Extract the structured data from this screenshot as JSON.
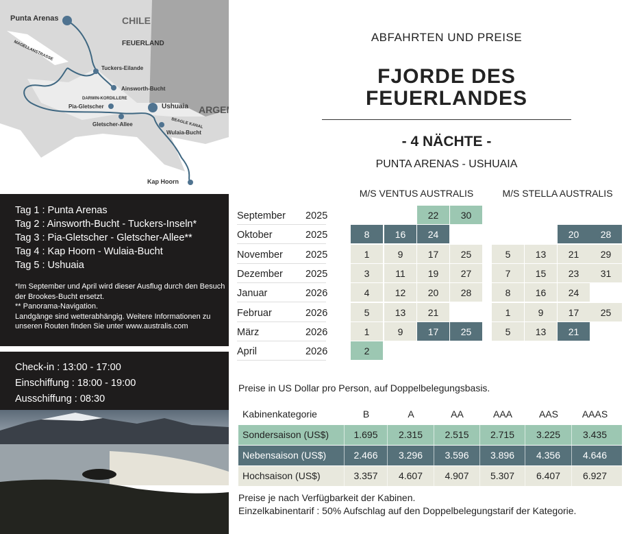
{
  "map": {
    "labels": {
      "country1": "CHILE",
      "region": "FEUERLAND",
      "country2": "ARGENTINIEN",
      "strait": "MAGELLANSTRASSE",
      "range": "DARWIN-KORDILLERE",
      "channel": "BEAGLE KANAL"
    },
    "stops": [
      {
        "n": "1",
        "name": "Punta Arenas"
      },
      {
        "n": "2",
        "name": "Tuckers-Eilande"
      },
      {
        "n": "2",
        "name": "Ainsworth-Bucht"
      },
      {
        "n": "3",
        "name": "Pia-Gletscher"
      },
      {
        "n": "3",
        "name": "Gletscher-Allee"
      },
      {
        "n": "5",
        "name": "Ushuaia"
      },
      {
        "n": "4",
        "name": "Wulaia-Bucht"
      },
      {
        "n": "4",
        "name": "Kap Hoorn"
      }
    ],
    "route_color": "#3f6781"
  },
  "itinerary": {
    "days": [
      "Tag 1 : Punta Arenas",
      "Tag 2 : Ainsworth-Bucht - Tuckers-Inseln*",
      "Tag 3 : Pia-Gletscher - Gletscher-Allee**",
      "Tag 4 : Kap Hoorn - Wulaia-Bucht",
      "Tag 5 : Ushuaia"
    ],
    "notes": [
      "*Im September und April wird dieser Ausflug durch den Besuch der Brookes-Bucht ersetzt.",
      "** Panorama-Navigation.",
      "Landgänge sind wetterabhängig. Weitere Informationen zu unseren Routen finden Sie unter www.australis.com"
    ]
  },
  "times": [
    "Check-in : 13:00 - 17:00",
    "Einschiffung : 18:00 - 19:00",
    "Ausschiffung : 08:30"
  ],
  "header": {
    "subtitle": "ABFAHRTEN UND PREISE",
    "title_line1": "FJORDE DES",
    "title_line2": "FEUERLANDES",
    "nights": "- 4 NÄCHTE -",
    "route": "PUNTA ARENAS - USHUAIA"
  },
  "ships": [
    "M/S VENTUS AUSTRALIS",
    "M/S STELLA AUSTRALIS"
  ],
  "season_colors": {
    "sonder": "#9cc7b2",
    "neben": "#56717a",
    "hoch": "#e8e8dd"
  },
  "calendar": [
    {
      "month": "September",
      "year": "2025",
      "ventus": [
        null,
        null,
        [
          "22",
          "s"
        ],
        [
          "30",
          "s"
        ]
      ],
      "stella": [
        null,
        null,
        null,
        null
      ]
    },
    {
      "month": "Oktober",
      "year": "2025",
      "ventus": [
        [
          "8",
          "n"
        ],
        [
          "16",
          "n"
        ],
        [
          "24",
          "n"
        ],
        null
      ],
      "stella": [
        null,
        null,
        [
          "20",
          "n"
        ],
        [
          "28",
          "n"
        ]
      ]
    },
    {
      "month": "November",
      "year": "2025",
      "ventus": [
        [
          "1",
          "h"
        ],
        [
          "9",
          "h"
        ],
        [
          "17",
          "h"
        ],
        [
          "25",
          "h"
        ]
      ],
      "stella": [
        [
          "5",
          "h"
        ],
        [
          "13",
          "h"
        ],
        [
          "21",
          "h"
        ],
        [
          "29",
          "h"
        ]
      ]
    },
    {
      "month": "Dezember",
      "year": "2025",
      "ventus": [
        [
          "3",
          "h"
        ],
        [
          "11",
          "h"
        ],
        [
          "19",
          "h"
        ],
        [
          "27",
          "h"
        ]
      ],
      "stella": [
        [
          "7",
          "h"
        ],
        [
          "15",
          "h"
        ],
        [
          "23",
          "h"
        ],
        [
          "31",
          "h"
        ]
      ]
    },
    {
      "month": "Januar",
      "year": "2026",
      "ventus": [
        [
          "4",
          "h"
        ],
        [
          "12",
          "h"
        ],
        [
          "20",
          "h"
        ],
        [
          "28",
          "h"
        ]
      ],
      "stella": [
        [
          "8",
          "h"
        ],
        [
          "16",
          "h"
        ],
        [
          "24",
          "h"
        ],
        null
      ]
    },
    {
      "month": "Februar",
      "year": "2026",
      "ventus": [
        [
          "5",
          "h"
        ],
        [
          "13",
          "h"
        ],
        [
          "21",
          "h"
        ],
        null
      ],
      "stella": [
        [
          "1",
          "h"
        ],
        [
          "9",
          "h"
        ],
        [
          "17",
          "h"
        ],
        [
          "25",
          "h"
        ]
      ]
    },
    {
      "month": "März",
      "year": "2026",
      "ventus": [
        [
          "1",
          "h"
        ],
        [
          "9",
          "h"
        ],
        [
          "17",
          "n"
        ],
        [
          "25",
          "n"
        ]
      ],
      "stella": [
        [
          "5",
          "h"
        ],
        [
          "13",
          "h"
        ],
        [
          "21",
          "n"
        ],
        null
      ]
    },
    {
      "month": "April",
      "year": "2026",
      "ventus": [
        [
          "2",
          "s"
        ],
        null,
        null,
        null
      ],
      "stella": [
        null,
        null,
        null,
        null
      ]
    }
  ],
  "prices": {
    "intro": "Preise in US Dollar pro Person, auf Doppelbelegungsbasis.",
    "header": [
      "Kabinenkategorie",
      "B",
      "A",
      "AA",
      "AAA",
      "AAS",
      "AAAS"
    ],
    "rows": [
      {
        "cls": "s",
        "cells": [
          "Sondersaison (US$)",
          "1.695",
          "2.315",
          "2.515",
          "2.715",
          "3.225",
          "3.435"
        ]
      },
      {
        "cls": "n",
        "cells": [
          "Nebensaison  (US$)",
          "2.466",
          "3.296",
          "3.596",
          "3.896",
          "4.356",
          "4.646"
        ]
      },
      {
        "cls": "h",
        "cells": [
          "Hochsaison (US$)",
          "3.357",
          "4.607",
          "4.907",
          "5.307",
          "6.407",
          "6.927"
        ]
      }
    ],
    "footnotes": [
      "Preise je nach Verfügbarkeit der Kabinen.",
      "Einzelkabinentarif : 50% Aufschlag auf den Doppelbelegungstarif der Kategorie."
    ]
  }
}
